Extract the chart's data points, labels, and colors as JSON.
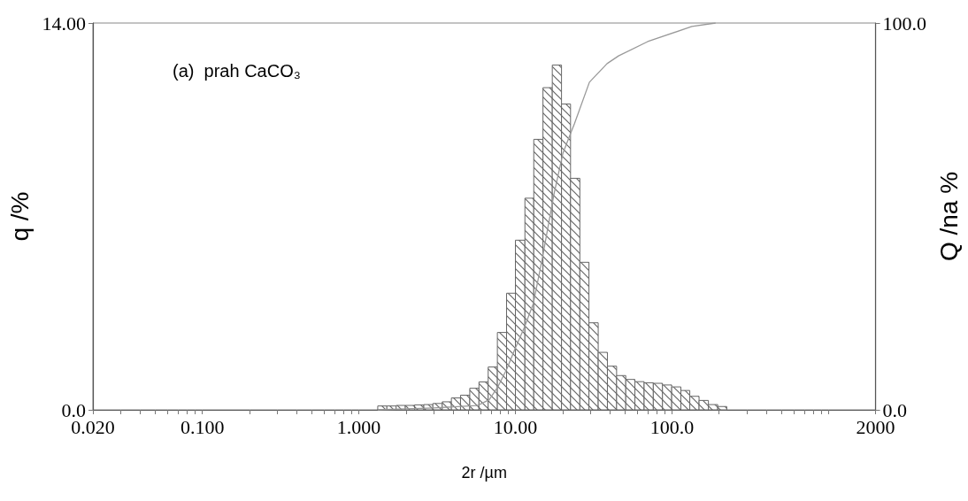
{
  "chart_data": {
    "type": "histogram",
    "xlabel": "2r /µm",
    "ylabel": "q /%",
    "y2label": "Q /na %",
    "annotations": [
      "(a)  prah CaCO₃"
    ],
    "log": "x",
    "marker": "none",
    "xlim": [
      0.02,
      2000
    ],
    "xticks": [
      {
        "value": 0.02,
        "label": "0.020"
      },
      {
        "value": 0.03,
        "label": null
      },
      {
        "value": 0.04,
        "label": null
      },
      {
        "value": 0.05,
        "label": null
      },
      {
        "value": 0.06,
        "label": null
      },
      {
        "value": 0.07,
        "label": null
      },
      {
        "value": 0.08,
        "label": null
      },
      {
        "value": 0.09,
        "label": null
      },
      {
        "value": 0.1,
        "label": "0.100"
      },
      {
        "value": 0.2,
        "label": null
      },
      {
        "value": 0.3,
        "label": null
      },
      {
        "value": 0.4,
        "label": null
      },
      {
        "value": 0.5,
        "label": null
      },
      {
        "value": 0.6,
        "label": null
      },
      {
        "value": 0.7,
        "label": null
      },
      {
        "value": 0.8,
        "label": null
      },
      {
        "value": 0.9,
        "label": null
      },
      {
        "value": 1,
        "label": "1.000"
      },
      {
        "value": 2,
        "label": null
      },
      {
        "value": 3,
        "label": null
      },
      {
        "value": 4,
        "label": null
      },
      {
        "value": 5,
        "label": null
      },
      {
        "value": 6,
        "label": null
      },
      {
        "value": 7,
        "label": null
      },
      {
        "value": 8,
        "label": null
      },
      {
        "value": 9,
        "label": null
      },
      {
        "value": 10,
        "label": "10.00"
      },
      {
        "value": 20,
        "label": null
      },
      {
        "value": 30,
        "label": null
      },
      {
        "value": 40,
        "label": null
      },
      {
        "value": 50,
        "label": null
      },
      {
        "value": 60,
        "label": null
      },
      {
        "value": 70,
        "label": null
      },
      {
        "value": 80,
        "label": null
      },
      {
        "value": 90,
        "label": null
      },
      {
        "value": 100,
        "label": "100.0"
      },
      {
        "value": 200,
        "label": null
      },
      {
        "value": 300,
        "label": null
      },
      {
        "value": 400,
        "label": null
      },
      {
        "value": 500,
        "label": null
      },
      {
        "value": 600,
        "label": null
      },
      {
        "value": 700,
        "label": null
      },
      {
        "value": 800,
        "label": null
      },
      {
        "value": 900,
        "label": null
      },
      {
        "value": 1000,
        "label": null
      },
      {
        "value": 2000,
        "label": "2000"
      }
    ],
    "ylim": [
      0,
      14
    ],
    "yticks": [
      {
        "value": 0,
        "label": "0.0"
      },
      {
        "value": 14,
        "label": "14.00"
      }
    ],
    "y2lim": [
      0,
      100
    ],
    "y2ticks": [
      {
        "value": 0,
        "label": "0.0"
      },
      {
        "value": 100,
        "label": "100.0"
      }
    ],
    "series": [
      {
        "color": "#666666",
        "bins": [
          1.32,
          1.51,
          1.73,
          1.98,
          2.27,
          2.6,
          2.97,
          3.41,
          3.9,
          4.46,
          5.11,
          5.85,
          6.7,
          7.67,
          8.78,
          10,
          11.5,
          13.1,
          15.0,
          17.2,
          19.7,
          22.5,
          25.8,
          29.5,
          33.8,
          38.7,
          44.3,
          50.7,
          58.0,
          66.4,
          76.0,
          87.0,
          99.6,
          114,
          130,
          149,
          171,
          196,
          224
        ],
        "values": [
          0.14,
          0.14,
          0.16,
          0.16,
          0.18,
          0.19,
          0.23,
          0.29,
          0.43,
          0.53,
          0.78,
          1.01,
          1.55,
          2.8,
          4.22,
          6.14,
          7.66,
          9.79,
          11.66,
          12.48,
          11.07,
          8.38,
          5.34,
          3.15,
          2.08,
          1.58,
          1.24,
          1.1,
          1.02,
          0.98,
          0.96,
          0.9,
          0.83,
          0.7,
          0.49,
          0.34,
          0.19,
          0.12
        ]
      },
      {
        "type": "line",
        "axis": "y2",
        "color": "#999999",
        "x": [
          1.32,
          3.0,
          5.72,
          6.8,
          7.74,
          8.82,
          10.0,
          11.4,
          13.0,
          14.8,
          17.6,
          20.1,
          22.6,
          23.8,
          29.7,
          38.5,
          45.6,
          70.0,
          134,
          190
        ],
        "values": [
          0,
          0.5,
          1.1,
          2.6,
          6.0,
          10.6,
          16.0,
          21.3,
          27.4,
          38.8,
          55.6,
          66.3,
          71.6,
          73.9,
          84.7,
          89.5,
          91.5,
          95.2,
          99.1,
          100
        ]
      }
    ]
  }
}
